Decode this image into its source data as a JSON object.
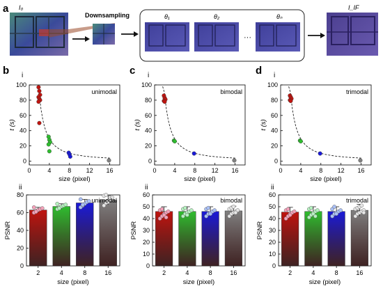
{
  "panels": {
    "a": "a",
    "b": "b",
    "c": "c",
    "d": "d",
    "row1": "i",
    "row2": "ii"
  },
  "top": {
    "downsampling": "Downsampling",
    "input_label": "I₀",
    "theta_labels": [
      "θ₁",
      "θ₂",
      "θₙ"
    ],
    "ellipsis": "···",
    "output_label": "I_IF"
  },
  "colors": {
    "c2": "#c0140f",
    "c4": "#2fbd2f",
    "c8": "#1a1ad8",
    "c16": "#808080",
    "dots2": "#f3a0b8",
    "dots4": "#b5f0bf",
    "dots8": "#a9bff5",
    "dots16": "#e6e6e6"
  },
  "chart_data": [
    {
      "id": "b-i",
      "type": "scatter",
      "annotation": "unimodal",
      "xlabel": "size (pixel)",
      "ylabel": "t (s)",
      "xlim": [
        0,
        18
      ],
      "ylim": [
        -5,
        100
      ],
      "xticks": [
        0,
        4,
        8,
        12,
        16
      ],
      "yticks": [
        0,
        20,
        40,
        60,
        80,
        100
      ],
      "points": {
        "2": [
          97,
          92,
          87,
          84,
          82,
          80,
          78,
          50
        ],
        "4": [
          32,
          28,
          25,
          22,
          13
        ],
        "8": [
          11,
          9,
          6
        ],
        "16": [
          1
        ]
      },
      "fit": "dashed"
    },
    {
      "id": "c-i",
      "type": "scatter",
      "annotation": "bimodal",
      "xlabel": "size (pixel)",
      "ylabel": "t (s)",
      "xlim": [
        0,
        18
      ],
      "ylim": [
        -5,
        100
      ],
      "xticks": [
        0,
        4,
        8,
        12,
        16
      ],
      "yticks": [
        0,
        20,
        40,
        60,
        80,
        100
      ],
      "points": {
        "2": [
          86,
          83,
          81,
          79,
          78
        ],
        "4": [
          27,
          26
        ],
        "8": [
          10
        ],
        "16": [
          1
        ]
      },
      "fit": "dashed"
    },
    {
      "id": "d-i",
      "type": "scatter",
      "annotation": "trimodal",
      "xlabel": "size (pixel)",
      "ylabel": "t (s)",
      "xlim": [
        0,
        18
      ],
      "ylim": [
        -5,
        100
      ],
      "xticks": [
        0,
        4,
        8,
        12,
        16
      ],
      "yticks": [
        0,
        20,
        40,
        60,
        80,
        100
      ],
      "points": {
        "2": [
          86,
          84,
          82,
          80,
          79
        ],
        "4": [
          27,
          26
        ],
        "8": [
          10
        ],
        "16": [
          1
        ]
      },
      "fit": "dashed"
    },
    {
      "id": "b-ii",
      "type": "bar",
      "annotation": "unimodal",
      "xlabel": "size (pixel)",
      "ylabel": "PSNR",
      "ylim": [
        0,
        80
      ],
      "yticks": [
        0,
        20,
        40,
        60,
        80
      ],
      "categories": [
        "2",
        "4",
        "8",
        "16"
      ],
      "values": [
        63,
        67,
        71,
        74
      ],
      "errors": [
        3,
        3,
        4,
        5
      ],
      "dots": [
        [
          60,
          62,
          63,
          64,
          65,
          66,
          61
        ],
        [
          64,
          66,
          67,
          68,
          69,
          70,
          65
        ],
        [
          66,
          68,
          70,
          72,
          73,
          75,
          69
        ],
        [
          68,
          71,
          73,
          75,
          77,
          79,
          80,
          72
        ]
      ]
    },
    {
      "id": "c-ii",
      "type": "bar",
      "annotation": "bimodal",
      "xlabel": "size (pixel)",
      "ylabel": "PSNR",
      "ylim": [
        0,
        60
      ],
      "yticks": [
        0,
        10,
        20,
        30,
        40,
        50,
        60
      ],
      "categories": [
        "2",
        "4",
        "8",
        "16"
      ],
      "values": [
        46,
        46,
        46,
        46.5
      ],
      "errors": [
        4,
        4,
        4,
        4
      ],
      "dots": [
        [
          40,
          42,
          44,
          45,
          46,
          47,
          48,
          43,
          41
        ],
        [
          42,
          44,
          45,
          46,
          47,
          48,
          49,
          43
        ],
        [
          42,
          44,
          45,
          46,
          47,
          48,
          49,
          44
        ],
        [
          42,
          44,
          45,
          46,
          47,
          48,
          49,
          50,
          45
        ]
      ]
    },
    {
      "id": "d-ii",
      "type": "bar",
      "annotation": "trimodal",
      "xlabel": "size (pixel)",
      "ylabel": "PSNR",
      "ylim": [
        0,
        60
      ],
      "yticks": [
        0,
        10,
        20,
        30,
        40,
        50,
        60
      ],
      "categories": [
        "2",
        "4",
        "8",
        "16"
      ],
      "values": [
        45.5,
        46,
        46,
        47
      ],
      "errors": [
        4,
        4,
        4,
        5
      ],
      "dots": [
        [
          40,
          42,
          44,
          45,
          46,
          47,
          48,
          43
        ],
        [
          41,
          43,
          45,
          46,
          47,
          48,
          49,
          44,
          42
        ],
        [
          42,
          44,
          45,
          46,
          47,
          48,
          50,
          44
        ],
        [
          42,
          44,
          45,
          46,
          47,
          48,
          49,
          50,
          51,
          45
        ]
      ]
    }
  ]
}
